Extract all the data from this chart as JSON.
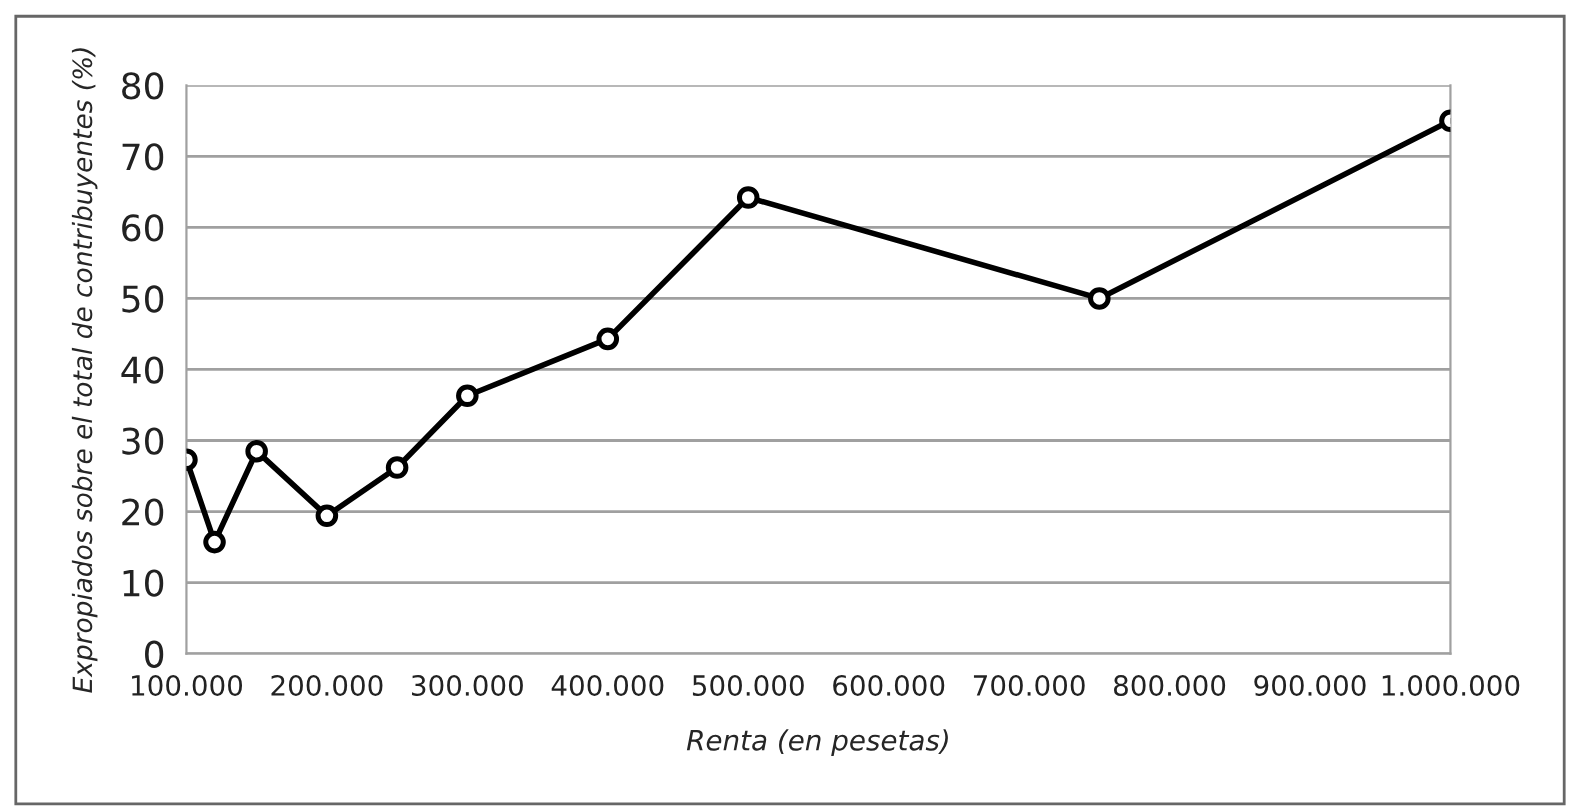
{
  "chart_data": {
    "type": "line",
    "xlabel": "Renta (en pesetas)",
    "ylabel": "Expropiados sobre el total de contribuyentes (%)",
    "x": [
      100000,
      120000,
      150000,
      200000,
      250000,
      300000,
      400000,
      500000,
      750000,
      1000000
    ],
    "series": [
      {
        "color": "#000000",
        "values": [
          27.3,
          15.7,
          28.5,
          19.4,
          26.2,
          36.3,
          44.3,
          64.2,
          50,
          75
        ]
      }
    ],
    "xlim": [
      100000,
      1000000
    ],
    "xticks": [
      {
        "value": 100000,
        "label": "100.000"
      },
      {
        "value": 200000,
        "label": "200.000"
      },
      {
        "value": 300000,
        "label": "300.000"
      },
      {
        "value": 400000,
        "label": "400.000"
      },
      {
        "value": 500000,
        "label": "500.000"
      },
      {
        "value": 600000,
        "label": "600.000"
      },
      {
        "value": 700000,
        "label": "700.000"
      },
      {
        "value": 800000,
        "label": "800.000"
      },
      {
        "value": 900000,
        "label": "900.000"
      },
      {
        "value": 1000000,
        "label": "1.000.000"
      }
    ],
    "ylim": [
      0,
      80
    ],
    "yticks": [
      0,
      10,
      20,
      30,
      40,
      50,
      60,
      70,
      80
    ],
    "grid": "y",
    "marker": "circle",
    "line_style": "solid",
    "legend": false
  }
}
